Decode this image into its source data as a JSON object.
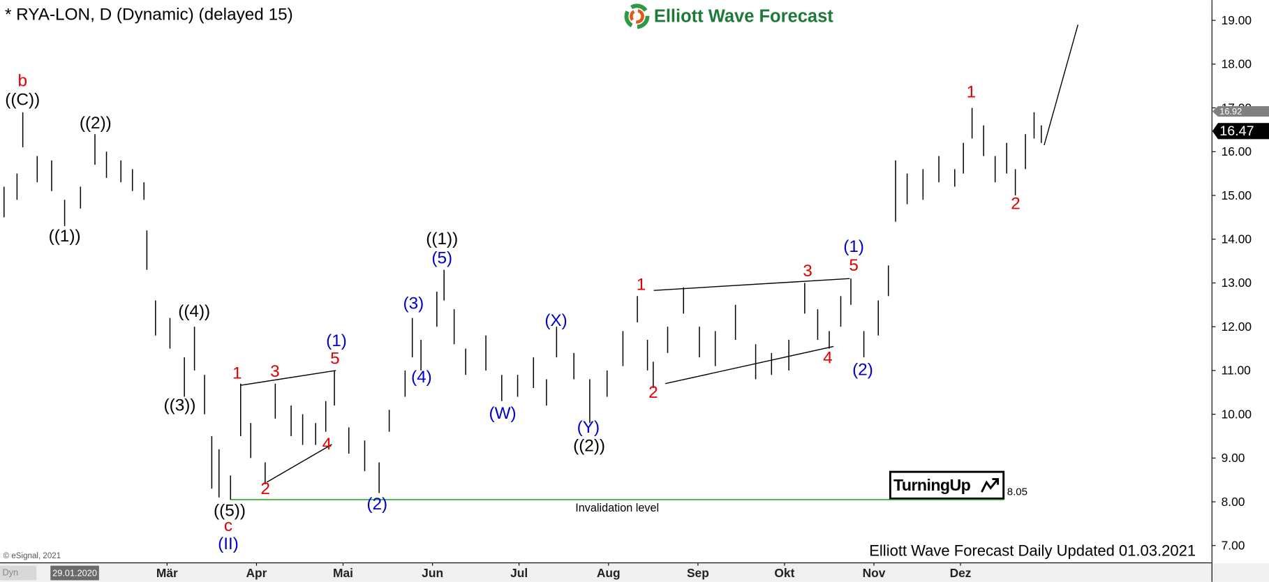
{
  "chart_data": {
    "type": "ohlc",
    "title": "* RYA-LON, D (Dynamic) (delayed 15)",
    "logo": "Elliott Wave Forecast",
    "footer": "Elliott Wave Forecast Daily Updated 01.03.2021",
    "copyright": "© eSignal, 2021",
    "mode_label": "Dyn",
    "badge": "TurningUp",
    "bar_color": "#000000",
    "xlim": [
      -25.9,
      394
    ],
    "ylim": [
      6.614,
      19.462
    ],
    "xticks": [
      {
        "value": 32,
        "label": "Mär"
      },
      {
        "value": 63,
        "label": "Apr"
      },
      {
        "value": 93,
        "label": "Mai"
      },
      {
        "value": 124,
        "label": "Jun"
      },
      {
        "value": 154,
        "label": "Jul"
      },
      {
        "value": 185,
        "label": "Aug"
      },
      {
        "value": 216,
        "label": "Sep"
      },
      {
        "value": 246,
        "label": "Okt"
      },
      {
        "value": 277,
        "label": "Nov"
      },
      {
        "value": 307,
        "label": "Dez"
      }
    ],
    "yticks": [
      {
        "value": 7,
        "label": "7.00"
      },
      {
        "value": 8,
        "label": "8.00"
      },
      {
        "value": 9,
        "label": "9.00"
      },
      {
        "value": 10,
        "label": "10.00"
      },
      {
        "value": 11,
        "label": "11.00"
      },
      {
        "value": 12,
        "label": "12.00"
      },
      {
        "value": 13,
        "label": "13.00"
      },
      {
        "value": 14,
        "label": "14.00"
      },
      {
        "value": 15,
        "label": "15.00"
      },
      {
        "value": 16,
        "label": "16.00"
      },
      {
        "value": 17,
        "label": "17.00"
      },
      {
        "value": 18,
        "label": "18.00"
      },
      {
        "value": 19,
        "label": "19.00"
      }
    ],
    "date_marker": {
      "value": 0,
      "label": "29.01.2020"
    },
    "price_tags": [
      {
        "value": 16.92,
        "color": "#808080"
      },
      {
        "value": 16.47,
        "color": "#000000"
      }
    ],
    "invalidation": {
      "value": 8.05,
      "label": "Invalidation level",
      "x": [
        54,
        322
      ],
      "color": "#00a000"
    },
    "bars": {
      "x": [
        -24.5,
        -20,
        -18,
        -13,
        -8,
        -3.5,
        2,
        7,
        11,
        16,
        20,
        24,
        25,
        28,
        33,
        38,
        41.5,
        45,
        47.5,
        50,
        54,
        57.5,
        61,
        66,
        69.5,
        75,
        79,
        83.5,
        87,
        90,
        95,
        100.5,
        105.5,
        109,
        114.5,
        117,
        120,
        125.5,
        128,
        131.5,
        135.5,
        142.5,
        148,
        153.5,
        159,
        163.5,
        167,
        173,
        178.5,
        184.5,
        190,
        195,
        198.5,
        200.5,
        205.5,
        211,
        216.5,
        222,
        229,
        236,
        241.5,
        247.5,
        253,
        257.5,
        261.5,
        265.5,
        269,
        273.5,
        278.5,
        282,
        284.5,
        288.5,
        294,
        299.5,
        305,
        308,
        311,
        315,
        319,
        323,
        326,
        329.5,
        332.5,
        335
      ],
      "high": [
        15.2,
        15.5,
        16.9,
        15.9,
        15.8,
        14.9,
        15.2,
        16.4,
        16.0,
        15.8,
        15.6,
        15.3,
        14.2,
        12.6,
        12.2,
        11.3,
        12.0,
        10.9,
        9.5,
        9.2,
        8.6,
        10.7,
        9.8,
        8.9,
        10.7,
        10.2,
        10.0,
        9.8,
        10.3,
        11.0,
        9.7,
        9.4,
        8.9,
        10.1,
        11.0,
        12.2,
        11.7,
        12.8,
        13.3,
        12.4,
        11.5,
        11.8,
        10.9,
        10.9,
        11.3,
        10.8,
        12.0,
        11.4,
        10.8,
        11.0,
        11.9,
        12.7,
        11.7,
        11.2,
        12.0,
        12.9,
        12.0,
        11.9,
        12.5,
        11.6,
        11.4,
        11.7,
        13.0,
        12.4,
        11.9,
        12.7,
        13.1,
        11.9,
        12.6,
        13.4,
        15.8,
        15.5,
        15.6,
        15.9,
        15.6,
        16.2,
        17.0,
        16.6,
        15.9,
        16.2,
        15.6,
        16.4,
        16.9,
        16.6
      ],
      "low": [
        14.5,
        14.9,
        16.1,
        15.3,
        15.1,
        14.3,
        14.7,
        15.7,
        15.4,
        15.3,
        15.1,
        14.9,
        13.3,
        11.8,
        11.5,
        10.4,
        11.0,
        10.0,
        8.3,
        8.1,
        8.05,
        9.5,
        9.0,
        8.4,
        9.9,
        9.5,
        9.3,
        9.3,
        9.6,
        10.2,
        9.1,
        8.7,
        8.2,
        9.6,
        10.4,
        11.3,
        11.0,
        12.0,
        12.6,
        11.6,
        10.9,
        11.0,
        10.3,
        10.4,
        10.6,
        10.2,
        11.3,
        10.8,
        9.8,
        10.4,
        11.1,
        12.1,
        11.0,
        10.6,
        11.4,
        12.3,
        11.3,
        11.1,
        11.7,
        10.8,
        10.9,
        11.0,
        12.3,
        11.7,
        11.5,
        12.0,
        12.5,
        11.3,
        11.8,
        12.7,
        14.4,
        14.8,
        14.9,
        15.3,
        15.2,
        15.5,
        16.3,
        15.9,
        15.3,
        15.5,
        15.0,
        15.6,
        16.3,
        16.2
      ]
    },
    "trend_lines": [
      {
        "x": [
          57.4,
          90.5
        ],
        "y": [
          10.66,
          11.0
        ],
        "color": "#000000"
      },
      {
        "x": [
          66.6,
          89.1
        ],
        "y": [
          8.45,
          9.31
        ],
        "color": "#000000"
      },
      {
        "x": [
          200.7,
          268.6
        ],
        "y": [
          12.83,
          13.1
        ],
        "color": "#000000"
      },
      {
        "x": [
          204.7,
          263
        ],
        "y": [
          10.7,
          11.55
        ],
        "color": "#000000"
      },
      {
        "x": [
          336,
          347.7
        ],
        "y": [
          16.15,
          18.9
        ],
        "color": "#000000"
      }
    ],
    "annotations": [
      {
        "text": "b",
        "x": -18.1,
        "y": 17.6,
        "color": "#e00000"
      },
      {
        "text": "((C))",
        "x": -18.1,
        "y": 17.17,
        "color": "#000000"
      },
      {
        "text": "((1))",
        "x": -3.5,
        "y": 14.05,
        "color": "#000000"
      },
      {
        "text": "((2))",
        "x": 7.2,
        "y": 16.63,
        "color": "#000000"
      },
      {
        "text": "((4))",
        "x": 41.4,
        "y": 12.33,
        "color": "#000000"
      },
      {
        "text": "((3))",
        "x": 36.4,
        "y": 10.18,
        "color": "#000000"
      },
      {
        "text": "((5))",
        "x": 53.7,
        "y": 7.78,
        "color": "#000000"
      },
      {
        "text": "c",
        "x": 53.2,
        "y": 7.43,
        "color": "#e00000"
      },
      {
        "text": "(II)",
        "x": 53.2,
        "y": 7.02,
        "color": "#0000cc"
      },
      {
        "text": "1",
        "x": 56.3,
        "y": 10.92,
        "color": "#e00000"
      },
      {
        "text": "3",
        "x": 69.4,
        "y": 10.96,
        "color": "#e00000"
      },
      {
        "text": "2",
        "x": 66.1,
        "y": 8.28,
        "color": "#e00000"
      },
      {
        "text": "4",
        "x": 87.4,
        "y": 9.3,
        "color": "#e00000"
      },
      {
        "text": "(1)",
        "x": 90.7,
        "y": 11.66,
        "color": "#0000cc"
      },
      {
        "text": "5",
        "x": 90.2,
        "y": 11.25,
        "color": "#e00000"
      },
      {
        "text": "(2)",
        "x": 104.8,
        "y": 7.93,
        "color": "#0000cc"
      },
      {
        "text": "(3)",
        "x": 117.4,
        "y": 12.51,
        "color": "#0000cc"
      },
      {
        "text": "(4)",
        "x": 120.2,
        "y": 10.83,
        "color": "#0000cc"
      },
      {
        "text": "((1))",
        "x": 127.3,
        "y": 13.99,
        "color": "#000000"
      },
      {
        "text": "(5)",
        "x": 127.3,
        "y": 13.55,
        "color": "#0000cc"
      },
      {
        "text": "(W)",
        "x": 148.3,
        "y": 10.0,
        "color": "#0000cc"
      },
      {
        "text": "(X)",
        "x": 166.8,
        "y": 12.12,
        "color": "#0000cc"
      },
      {
        "text": "(Y)",
        "x": 178.0,
        "y": 9.68,
        "color": "#0000cc"
      },
      {
        "text": "((2))",
        "x": 178.3,
        "y": 9.26,
        "color": "#000000"
      },
      {
        "text": "1",
        "x": 196.3,
        "y": 12.94,
        "color": "#e00000"
      },
      {
        "text": "2",
        "x": 200.5,
        "y": 10.48,
        "color": "#e00000"
      },
      {
        "text": "3",
        "x": 254.0,
        "y": 13.25,
        "color": "#e00000"
      },
      {
        "text": "4",
        "x": 261.0,
        "y": 11.27,
        "color": "#e00000"
      },
      {
        "text": "5",
        "x": 270.0,
        "y": 13.38,
        "color": "#e00000"
      },
      {
        "text": "(1)",
        "x": 270.0,
        "y": 13.81,
        "color": "#0000cc"
      },
      {
        "text": "(2)",
        "x": 273.1,
        "y": 11.0,
        "color": "#0000cc"
      },
      {
        "text": "1",
        "x": 310.7,
        "y": 17.34,
        "color": "#e00000"
      },
      {
        "text": "2",
        "x": 326.1,
        "y": 14.79,
        "color": "#e00000"
      }
    ]
  }
}
